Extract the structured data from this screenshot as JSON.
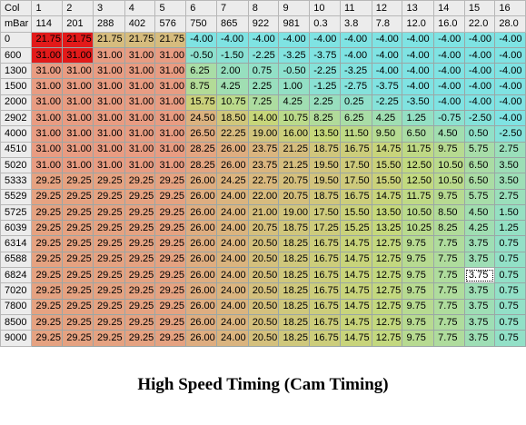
{
  "corner": {
    "top": "Col",
    "bottom": "mBar"
  },
  "columns": [
    {
      "col": "1",
      "value": "114"
    },
    {
      "col": "2",
      "value": "201"
    },
    {
      "col": "3",
      "value": "288"
    },
    {
      "col": "4",
      "value": "402"
    },
    {
      "col": "5",
      "value": "576"
    },
    {
      "col": "6",
      "value": "750"
    },
    {
      "col": "7",
      "value": "865"
    },
    {
      "col": "8",
      "value": "922"
    },
    {
      "col": "9",
      "value": "981"
    },
    {
      "col": "10",
      "value": "0.3"
    },
    {
      "col": "11",
      "value": "3.8"
    },
    {
      "col": "12",
      "value": "7.8"
    },
    {
      "col": "13",
      "value": "12.0"
    },
    {
      "col": "14",
      "value": "16.0"
    },
    {
      "col": "15",
      "value": "22.0"
    },
    {
      "col": "16",
      "value": "28.0"
    }
  ],
  "rows": [
    {
      "mbar": "0",
      "cells": [
        "21.75",
        "21.75",
        "21.75",
        "21.75",
        "21.75",
        "-4.00",
        "-4.00",
        "-4.00",
        "-4.00",
        "-4.00",
        "-4.00",
        "-4.00",
        "-4.00",
        "-4.00",
        "-4.00",
        "-4.00"
      ]
    },
    {
      "mbar": "600",
      "cells": [
        "31.00",
        "31.00",
        "31.00",
        "31.00",
        "31.00",
        "-0.50",
        "-1.50",
        "-2.25",
        "-3.25",
        "-3.75",
        "-4.00",
        "-4.00",
        "-4.00",
        "-4.00",
        "-4.00",
        "-4.00"
      ]
    },
    {
      "mbar": "1300",
      "cells": [
        "31.00",
        "31.00",
        "31.00",
        "31.00",
        "31.00",
        "6.25",
        "2.00",
        "0.75",
        "-0.50",
        "-2.25",
        "-3.25",
        "-4.00",
        "-4.00",
        "-4.00",
        "-4.00",
        "-4.00"
      ]
    },
    {
      "mbar": "1500",
      "cells": [
        "31.00",
        "31.00",
        "31.00",
        "31.00",
        "31.00",
        "8.75",
        "4.25",
        "2.25",
        "1.00",
        "-1.25",
        "-2.75",
        "-3.75",
        "-4.00",
        "-4.00",
        "-4.00",
        "-4.00"
      ]
    },
    {
      "mbar": "2000",
      "cells": [
        "31.00",
        "31.00",
        "31.00",
        "31.00",
        "31.00",
        "15.75",
        "10.75",
        "7.25",
        "4.25",
        "2.25",
        "0.25",
        "-2.25",
        "-3.50",
        "-4.00",
        "-4.00",
        "-4.00"
      ]
    },
    {
      "mbar": "2902",
      "cells": [
        "31.00",
        "31.00",
        "31.00",
        "31.00",
        "31.00",
        "24.50",
        "18.50",
        "14.00",
        "10.75",
        "8.25",
        "6.25",
        "4.25",
        "1.25",
        "-0.75",
        "-2.50",
        "-4.00"
      ]
    },
    {
      "mbar": "4000",
      "cells": [
        "31.00",
        "31.00",
        "31.00",
        "31.00",
        "31.00",
        "26.50",
        "22.25",
        "19.00",
        "16.00",
        "13.50",
        "11.50",
        "9.50",
        "6.50",
        "4.50",
        "0.50",
        "-2.50"
      ]
    },
    {
      "mbar": "4510",
      "cells": [
        "31.00",
        "31.00",
        "31.00",
        "31.00",
        "31.00",
        "28.25",
        "26.00",
        "23.75",
        "21.25",
        "18.75",
        "16.75",
        "14.75",
        "11.75",
        "9.75",
        "5.75",
        "2.75"
      ]
    },
    {
      "mbar": "5020",
      "cells": [
        "31.00",
        "31.00",
        "31.00",
        "31.00",
        "31.00",
        "28.25",
        "26.00",
        "23.75",
        "21.25",
        "19.50",
        "17.50",
        "15.50",
        "12.50",
        "10.50",
        "6.50",
        "3.50"
      ]
    },
    {
      "mbar": "5333",
      "cells": [
        "29.25",
        "29.25",
        "29.25",
        "29.25",
        "29.25",
        "26.00",
        "24.25",
        "22.75",
        "20.75",
        "19.50",
        "17.50",
        "15.50",
        "12.50",
        "10.50",
        "6.50",
        "3.50"
      ]
    },
    {
      "mbar": "5529",
      "cells": [
        "29.25",
        "29.25",
        "29.25",
        "29.25",
        "29.25",
        "26.00",
        "24.00",
        "22.00",
        "20.75",
        "18.75",
        "16.75",
        "14.75",
        "11.75",
        "9.75",
        "5.75",
        "2.75"
      ]
    },
    {
      "mbar": "5725",
      "cells": [
        "29.25",
        "29.25",
        "29.25",
        "29.25",
        "29.25",
        "26.00",
        "24.00",
        "21.00",
        "19.00",
        "17.50",
        "15.50",
        "13.50",
        "10.50",
        "8.50",
        "4.50",
        "1.50"
      ]
    },
    {
      "mbar": "6039",
      "cells": [
        "29.25",
        "29.25",
        "29.25",
        "29.25",
        "29.25",
        "26.00",
        "24.00",
        "20.75",
        "18.75",
        "17.25",
        "15.25",
        "13.25",
        "10.25",
        "8.25",
        "4.25",
        "1.25"
      ]
    },
    {
      "mbar": "6314",
      "cells": [
        "29.25",
        "29.25",
        "29.25",
        "29.25",
        "29.25",
        "26.00",
        "24.00",
        "20.50",
        "18.25",
        "16.75",
        "14.75",
        "12.75",
        "9.75",
        "7.75",
        "3.75",
        "0.75"
      ]
    },
    {
      "mbar": "6588",
      "cells": [
        "29.25",
        "29.25",
        "29.25",
        "29.25",
        "29.25",
        "26.00",
        "24.00",
        "20.50",
        "18.25",
        "16.75",
        "14.75",
        "12.75",
        "9.75",
        "7.75",
        "3.75",
        "0.75"
      ]
    },
    {
      "mbar": "6824",
      "cells": [
        "29.25",
        "29.25",
        "29.25",
        "29.25",
        "29.25",
        "26.00",
        "24.00",
        "20.50",
        "18.25",
        "16.75",
        "14.75",
        "12.75",
        "9.75",
        "7.75",
        "3.75",
        "0.75"
      ]
    },
    {
      "mbar": "7020",
      "cells": [
        "29.25",
        "29.25",
        "29.25",
        "29.25",
        "29.25",
        "26.00",
        "24.00",
        "20.50",
        "18.25",
        "16.75",
        "14.75",
        "12.75",
        "9.75",
        "7.75",
        "3.75",
        "0.75"
      ]
    },
    {
      "mbar": "7800",
      "cells": [
        "29.25",
        "29.25",
        "29.25",
        "29.25",
        "29.25",
        "26.00",
        "24.00",
        "20.50",
        "18.25",
        "16.75",
        "14.75",
        "12.75",
        "9.75",
        "7.75",
        "3.75",
        "0.75"
      ]
    },
    {
      "mbar": "8500",
      "cells": [
        "29.25",
        "29.25",
        "29.25",
        "29.25",
        "29.25",
        "26.00",
        "24.00",
        "20.50",
        "18.25",
        "16.75",
        "14.75",
        "12.75",
        "9.75",
        "7.75",
        "3.75",
        "0.75"
      ]
    },
    {
      "mbar": "9000",
      "cells": [
        "29.25",
        "29.25",
        "29.25",
        "29.25",
        "29.25",
        "26.00",
        "24.00",
        "20.50",
        "18.25",
        "16.75",
        "14.75",
        "12.75",
        "9.75",
        "7.75",
        "3.75",
        "0.75"
      ]
    }
  ],
  "selected_cell": {
    "row": 15,
    "col": 14
  },
  "highlighted_cells": [
    {
      "row": 0,
      "col": 0
    },
    {
      "row": 0,
      "col": 1
    },
    {
      "row": 1,
      "col": 0
    },
    {
      "row": 1,
      "col": 1
    }
  ],
  "colors": {
    "highlight": "#e21a1a",
    "high": "#e89c82",
    "mid": "#c6d87a",
    "low": "#7fe3e3"
  },
  "caption": "High Speed Timing (Cam Timing)"
}
